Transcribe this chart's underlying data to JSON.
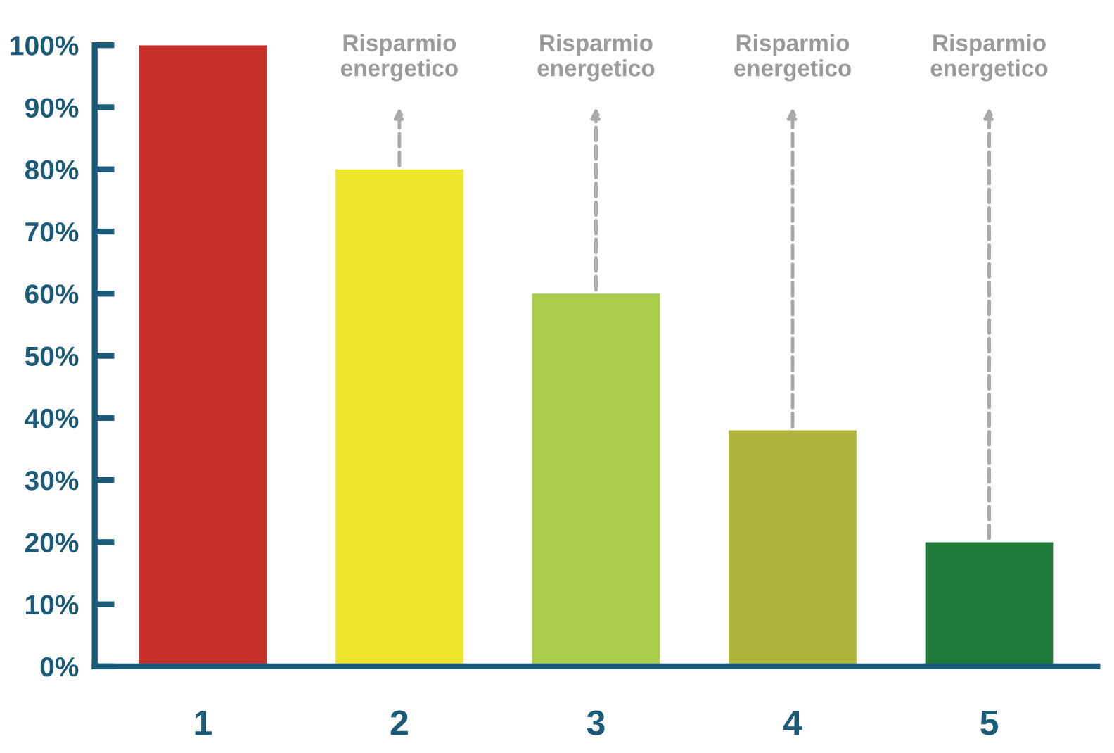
{
  "chart_data": {
    "type": "bar",
    "categories": [
      "1",
      "2",
      "3",
      "4",
      "5"
    ],
    "values": [
      100,
      80,
      60,
      38,
      20
    ],
    "colors": [
      "#c8302a",
      "#ede62a",
      "#a9cd4a",
      "#b1b43a",
      "#1f7a3a"
    ],
    "ylim": [
      0,
      100
    ],
    "yticks": [
      {
        "value": 0,
        "label": "0%"
      },
      {
        "value": 10,
        "label": "10%"
      },
      {
        "value": 20,
        "label": "20%"
      },
      {
        "value": 30,
        "label": "30%"
      },
      {
        "value": 40,
        "label": "40%"
      },
      {
        "value": 50,
        "label": "50%"
      },
      {
        "value": 60,
        "label": "60%"
      },
      {
        "value": 70,
        "label": "70%"
      },
      {
        "value": 80,
        "label": "80%"
      },
      {
        "value": 90,
        "label": "90%"
      },
      {
        "value": 100,
        "label": "100%"
      }
    ],
    "annotations": [
      "Risparmio\nenergetico",
      "Risparmio\nenergetico",
      "Risparmio\nenergetico",
      "Risparmio\nenergetico"
    ],
    "grid": false,
    "legend": false
  }
}
